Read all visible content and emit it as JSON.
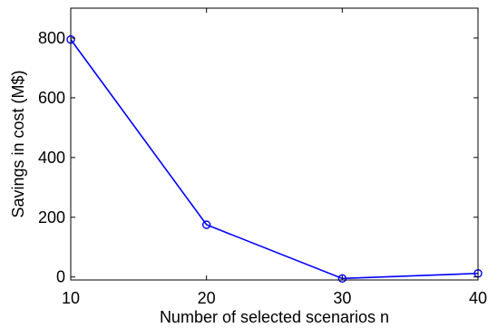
{
  "chart_data": {
    "type": "line",
    "title": "",
    "xlabel": "Number of selected scenarios n",
    "ylabel": "Savings in cost (M$)",
    "xlim": [
      10,
      40
    ],
    "ylim": [
      -10,
      900
    ],
    "xticks": [
      10,
      20,
      30,
      40
    ],
    "yticks": [
      0,
      200,
      400,
      600,
      800
    ],
    "grid": false,
    "series": [
      {
        "x": [
          10,
          20,
          30,
          40
        ],
        "values": [
          795,
          175,
          -5,
          12
        ],
        "color": "#0000ff",
        "marker": "circle"
      }
    ]
  }
}
